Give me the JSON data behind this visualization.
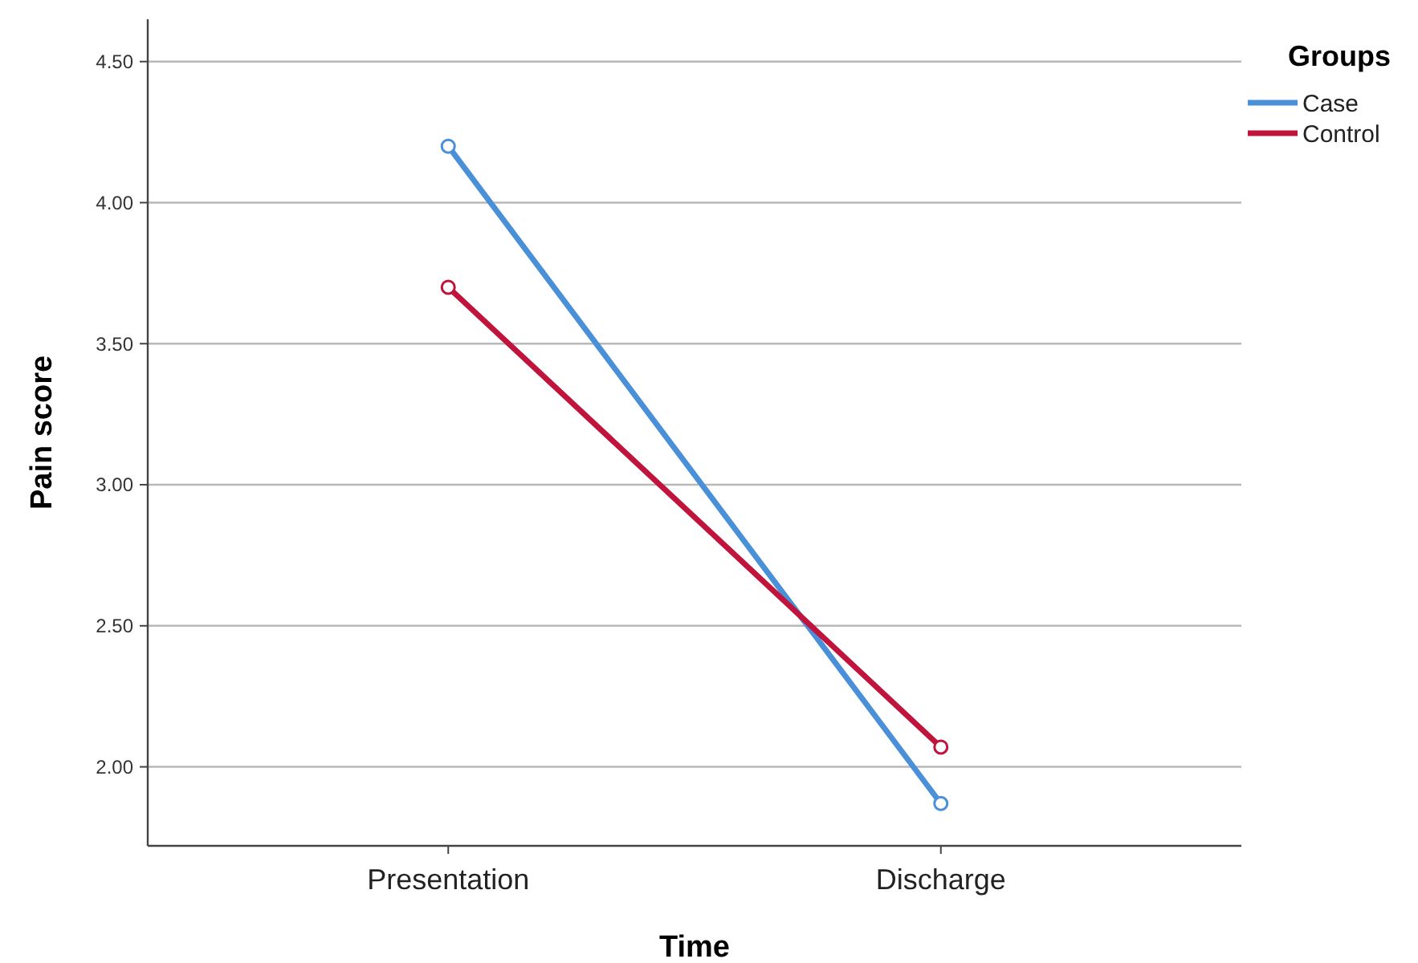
{
  "chart_data": {
    "type": "line",
    "xlabel": "Time",
    "ylabel": "Pain score",
    "legend_title": "Groups",
    "categories": [
      "Presentation",
      "Discharge"
    ],
    "series": [
      {
        "name": "Case",
        "color": "#4a90d9",
        "values": [
          4.2,
          1.87
        ]
      },
      {
        "name": "Control",
        "color": "#c0143c",
        "values": [
          3.7,
          2.07
        ]
      }
    ],
    "ylim": [
      1.72,
      4.65
    ],
    "yticks": [
      {
        "value": 2,
        "label": "2.00"
      },
      {
        "value": 2.5,
        "label": "2.50"
      },
      {
        "value": 3,
        "label": "3.00"
      },
      {
        "value": 3.5,
        "label": "3.50"
      },
      {
        "value": 4,
        "label": "4.00"
      },
      {
        "value": 4.5,
        "label": "4.50"
      }
    ],
    "grid": "y",
    "legend": "top right",
    "marker": "circle",
    "line_style": "solid"
  }
}
